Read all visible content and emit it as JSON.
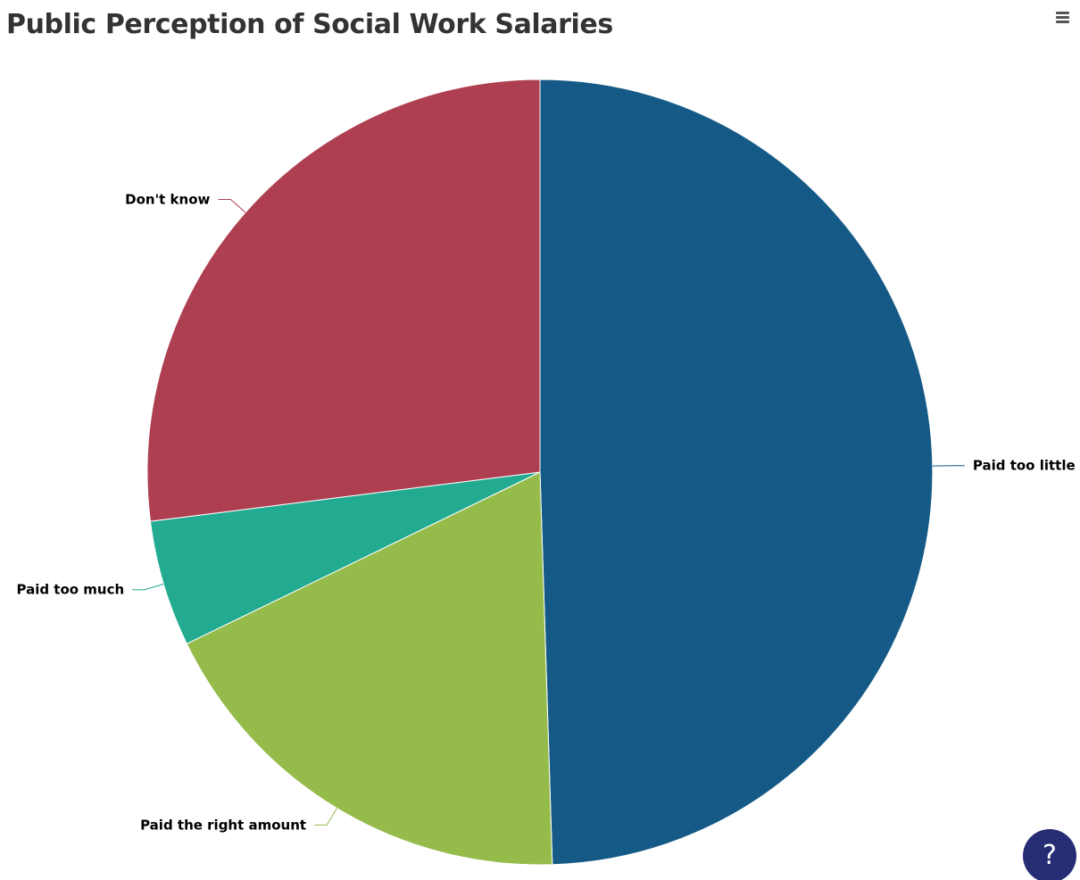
{
  "chart_data": {
    "type": "pie",
    "title": "Public Perception of Social Work Salaries",
    "slices": [
      {
        "label": "Paid too little",
        "value": 49.5,
        "color": "#155a86"
      },
      {
        "label": "Paid the right amount",
        "value": 18.3,
        "color": "#95bb4b"
      },
      {
        "label": "Paid too much",
        "value": 5.2,
        "color": "#22ab91"
      },
      {
        "label": "Don't know",
        "value": 27.0,
        "color": "#ae3f50"
      }
    ]
  },
  "ui": {
    "menu_icon": "hamburger-icon",
    "help_label": "?",
    "help_icon": "question-icon"
  }
}
